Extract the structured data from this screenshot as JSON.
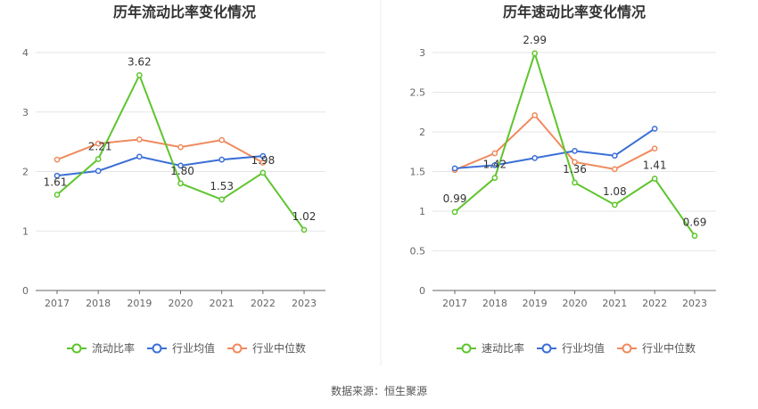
{
  "source": "数据来源：恒生聚源",
  "chart_data": [
    {
      "type": "line",
      "title": "历年流动比率变化情况",
      "categories": [
        "2017",
        "2018",
        "2019",
        "2020",
        "2021",
        "2022",
        "2023"
      ],
      "ylim": [
        0,
        4
      ],
      "yticks": [
        "0",
        "1",
        "2",
        "3",
        "4"
      ],
      "grid": true,
      "legend_position": "bottom",
      "series": [
        {
          "name": "流动比率",
          "color": "#5ec52d",
          "values": [
            1.61,
            2.21,
            3.62,
            1.8,
            1.53,
            1.98,
            1.02
          ],
          "labels": [
            "1.61",
            "2.21",
            "3.62",
            "1.80",
            "1.53",
            "1.98",
            "1.02"
          ]
        },
        {
          "name": "行业均值",
          "color": "#3b6fd6",
          "values": [
            1.93,
            2.01,
            2.25,
            2.1,
            2.2,
            2.26,
            null
          ]
        },
        {
          "name": "行业中位数",
          "color": "#f08a5d",
          "values": [
            2.2,
            2.47,
            2.54,
            2.41,
            2.53,
            2.15,
            null
          ]
        }
      ]
    },
    {
      "type": "line",
      "title": "历年速动比率变化情况",
      "categories": [
        "2017",
        "2018",
        "2019",
        "2020",
        "2021",
        "2022",
        "2023"
      ],
      "ylim": [
        0,
        3
      ],
      "yticks": [
        "0",
        "0.5",
        "1",
        "1.5",
        "2",
        "2.5",
        "3"
      ],
      "grid": true,
      "legend_position": "bottom",
      "series": [
        {
          "name": "速动比率",
          "color": "#5ec52d",
          "values": [
            0.99,
            1.42,
            2.99,
            1.36,
            1.08,
            1.41,
            0.69
          ],
          "labels": [
            "0.99",
            "1.42",
            "2.99",
            "1.36",
            "1.08",
            "1.41",
            "0.69"
          ]
        },
        {
          "name": "行业均值",
          "color": "#3b6fd6",
          "values": [
            1.54,
            1.58,
            1.67,
            1.76,
            1.7,
            2.04,
            null
          ]
        },
        {
          "name": "行业中位数",
          "color": "#f08a5d",
          "values": [
            1.52,
            1.73,
            2.21,
            1.62,
            1.53,
            1.79,
            null
          ]
        }
      ]
    }
  ]
}
